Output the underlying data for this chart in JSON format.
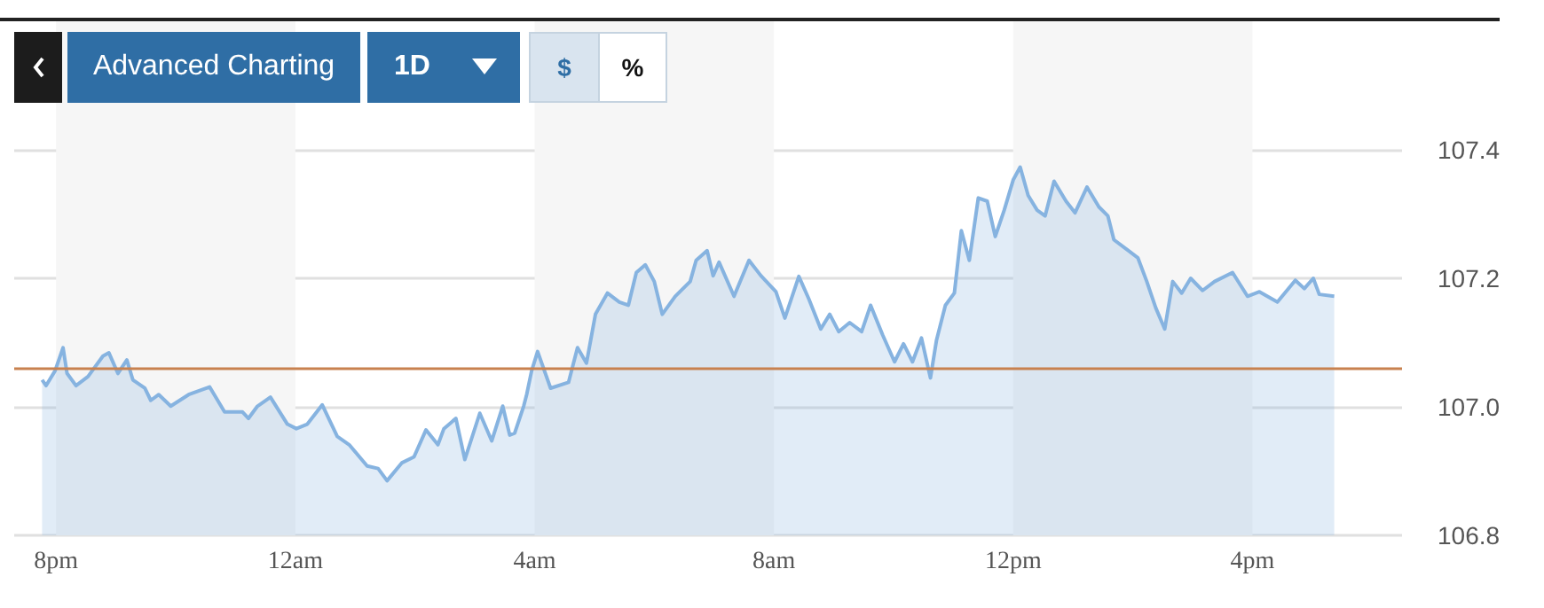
{
  "chart_data": {
    "type": "area",
    "annotations": [
      "Advanced Charting",
      "1D",
      "$",
      "%"
    ],
    "x": [
      "--01-01T19:46",
      "--01-01T19:50",
      "--01-01T19:59",
      "--01-01T20:07",
      "--01-01T20:11",
      "--01-01T20:20",
      "--01-01T20:32",
      "--01-01T20:47",
      "--01-01T20:53",
      "--01-01T21:02",
      "--01-01T21:11",
      "--01-01T21:17",
      "--01-01T21:29",
      "--01-01T21:35",
      "--01-01T21:43",
      "--01-01T21:55",
      "--01-01T22:13",
      "--01-01T22:34",
      "--01-01T22:49",
      "--01-01T23:07",
      "--01-01T23:13",
      "--01-01T23:22",
      "--01-01T23:35",
      "--01-01T23:52",
      "--01-02T00:01",
      "--01-02T00:12",
      "--01-02T00:27",
      "--01-02T00:42",
      "--01-02T00:54",
      "--01-02T01:12",
      "--01-02T01:23",
      "--01-02T01:32",
      "--01-02T01:47",
      "--01-02T01:59",
      "--01-02T02:11",
      "--01-02T02:23",
      "--01-02T02:29",
      "--01-02T02:41",
      "--01-02T02:50",
      "--01-02T03:05",
      "--01-02T03:17",
      "--01-02T03:28",
      "--01-02T03:35",
      "--01-02T03:40",
      "--01-02T03:49",
      "--01-02T03:52",
      "--01-02T03:57",
      "--01-02T04:03",
      "--01-02T04:16",
      "--01-02T04:34",
      "--01-02T04:43",
      "--01-02T04:52",
      "--01-02T05:01",
      "--01-02T05:13",
      "--01-02T05:25",
      "--01-02T05:34",
      "--01-02T05:42",
      "--01-02T05:51",
      "--01-02T06:00",
      "--01-02T06:08",
      "--01-02T06:21",
      "--01-02T06:36",
      "--01-02T06:42",
      "--01-02T06:53",
      "--01-02T06:59",
      "--01-02T07:05",
      "--01-02T07:20",
      "--01-02T07:35",
      "--01-02T07:47",
      "--01-02T08:02",
      "--01-02T08:11",
      "--01-02T08:25",
      "--01-02T08:35",
      "--01-02T08:47",
      "--01-02T08:56",
      "--01-02T09:05",
      "--01-02T09:16",
      "--01-02T09:28",
      "--01-02T09:37",
      "--01-02T09:49",
      "--01-02T10:01",
      "--01-02T10:10",
      "--01-02T10:19",
      "--01-02T10:28",
      "--01-02T10:37",
      "--01-02T10:43",
      "--01-02T10:52",
      "--01-02T11:01",
      "--01-02T11:08",
      "--01-02T11:16",
      "--01-02T11:25",
      "--01-02T11:34",
      "--01-02T11:42",
      "--01-02T11:51",
      "--01-02T12:00",
      "--01-02T12:07",
      "--01-02T12:15",
      "--01-02T12:24",
      "--01-02T12:32",
      "--01-02T12:41",
      "--01-02T12:53",
      "--01-02T13:02",
      "--01-02T13:14",
      "--01-02T13:26",
      "--01-02T13:35",
      "--01-02T13:41",
      "--01-02T13:53",
      "--01-02T14:05",
      "--01-02T14:14",
      "--01-02T14:23",
      "--01-02T14:32",
      "--01-02T14:40",
      "--01-02T14:49",
      "--01-02T14:58",
      "--01-02T15:10",
      "--01-02T15:22",
      "--01-02T15:40",
      "--01-02T15:55",
      "--01-02T16:07",
      "--01-02T16:25",
      "--01-02T16:43",
      "--01-02T16:52",
      "--01-02T17:01",
      "--01-02T17:07",
      "--01-02T17:22"
    ],
    "series": [
      {
        "color": "#86b3e0",
        "values": [
          107.042,
          107.033,
          107.056,
          107.092,
          107.052,
          107.033,
          107.047,
          107.079,
          107.084,
          107.052,
          107.073,
          107.042,
          107.029,
          107.01,
          107.019,
          107.001,
          107.019,
          107.031,
          106.992,
          106.992,
          106.982,
          107.001,
          107.015,
          106.973,
          106.966,
          106.973,
          107.003,
          106.954,
          106.941,
          106.908,
          106.904,
          106.885,
          106.913,
          106.922,
          106.964,
          106.941,
          106.966,
          106.982,
          106.918,
          106.99,
          106.947,
          107.001,
          106.956,
          106.959,
          107.001,
          107.019,
          107.056,
          107.086,
          107.029,
          107.038,
          107.092,
          107.068,
          107.144,
          107.177,
          107.163,
          107.158,
          107.209,
          107.221,
          107.195,
          107.144,
          107.172,
          107.195,
          107.228,
          107.243,
          107.204,
          107.225,
          107.172,
          107.228,
          107.204,
          107.179,
          107.138,
          107.203,
          107.168,
          107.121,
          107.144,
          107.117,
          107.131,
          107.117,
          107.158,
          107.112,
          107.07,
          107.098,
          107.07,
          107.107,
          107.045,
          107.103,
          107.158,
          107.177,
          107.274,
          107.228,
          107.325,
          107.32,
          107.265,
          107.306,
          107.353,
          107.373,
          107.329,
          107.306,
          107.297,
          107.351,
          107.32,
          107.302,
          107.342,
          107.311,
          107.297,
          107.26,
          107.246,
          107.232,
          107.195,
          107.154,
          107.121,
          107.195,
          107.177,
          107.2,
          107.181,
          107.195,
          107.209,
          107.172,
          107.179,
          107.163,
          107.197,
          107.184,
          107.2,
          107.175,
          107.172
        ]
      }
    ],
    "xlim": [
      "--01-01T19:18",
      "--01-02T18:30"
    ],
    "xticks": [
      {
        "value": "--01-01T20:00",
        "label": "8pm"
      },
      {
        "value": "--01-02T00:00",
        "label": "12am"
      },
      {
        "value": "--01-02T04:00",
        "label": "4am"
      },
      {
        "value": "--01-02T08:00",
        "label": "8am"
      },
      {
        "value": "--01-02T12:00",
        "label": "12pm"
      },
      {
        "value": "--01-02T16:00",
        "label": "4pm"
      }
    ],
    "ylim": [
      106.8,
      107.6
    ],
    "yticks": [
      {
        "value": 106.8,
        "label": "106.8"
      },
      {
        "value": 107.0,
        "label": "107.0"
      },
      {
        "value": 107.2,
        "label": "107.2"
      },
      {
        "value": 107.4,
        "label": "107.4"
      }
    ],
    "ref_lines": [
      {
        "axis": "y",
        "value": 107.056,
        "color": "#c8814f"
      }
    ],
    "bands": [
      {
        "axis": "x",
        "from": "--01-01T20:00",
        "to": "--01-02T00:00",
        "color": "#f6f6f6"
      },
      {
        "axis": "x",
        "from": "--01-02T04:00",
        "to": "--01-02T08:00",
        "color": "#f6f6f6"
      },
      {
        "axis": "x",
        "from": "--01-02T12:00",
        "to": "--01-02T16:00",
        "color": "#f6f6f6"
      }
    ],
    "grid": "y",
    "marker": "none",
    "line_style": "solid"
  }
}
